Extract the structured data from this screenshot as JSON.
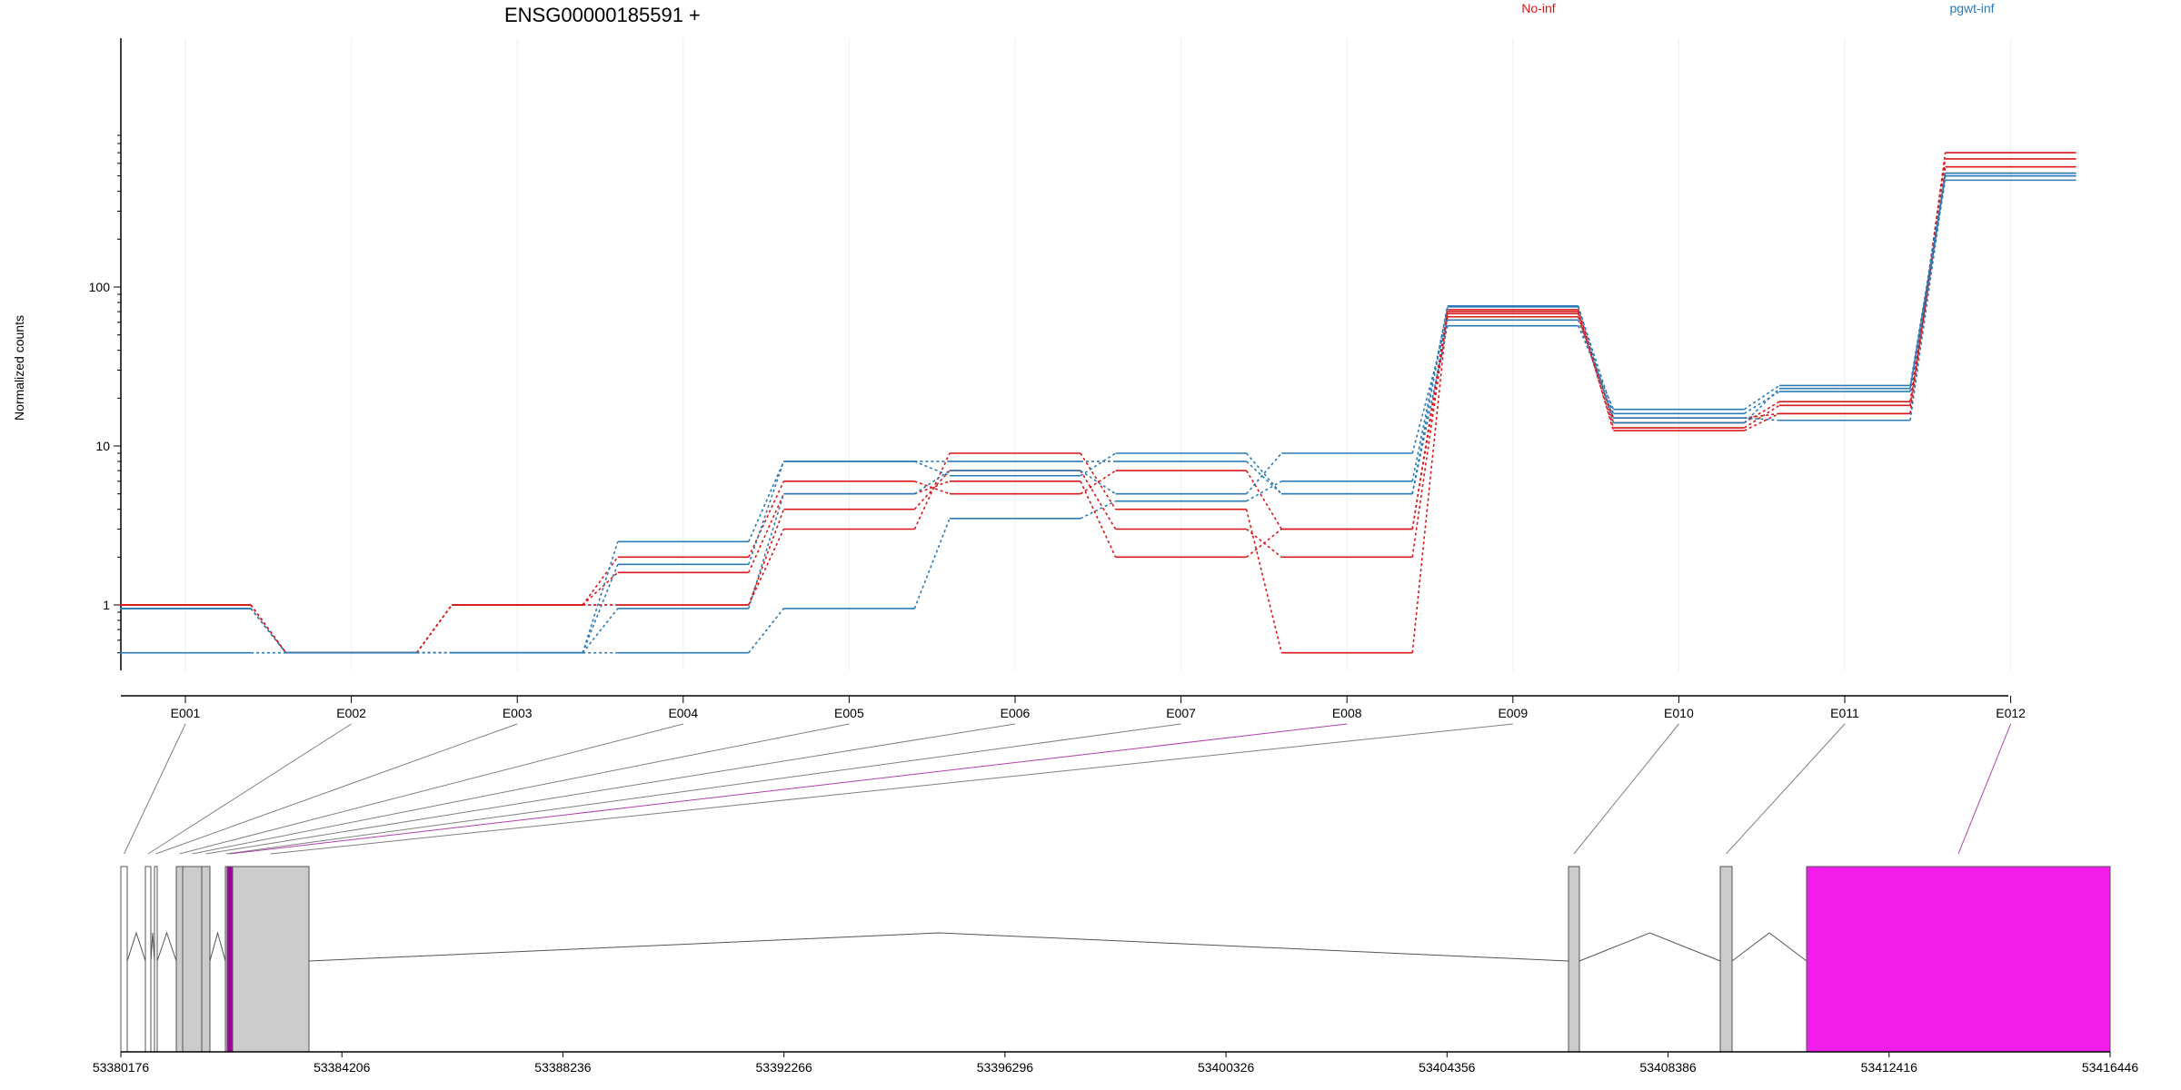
{
  "chart_data": {
    "type": "line",
    "title": "ENSG00000185591 +",
    "ylabel": "Normalized counts",
    "xlabel": "",
    "y_scale": "log",
    "y_ticks": [
      {
        "value": 1,
        "label": "1"
      },
      {
        "value": 10,
        "label": "10"
      },
      {
        "value": 100,
        "label": "100"
      }
    ],
    "ylim": [
      0.5,
      1000
    ],
    "grid": "vertical, light grey",
    "legend_position": "top",
    "legend": [
      {
        "name": "No-inf",
        "color": "#d7191c"
      },
      {
        "name": "pgwt-inf",
        "color": "#2c7bb6"
      }
    ],
    "categories": [
      "E001",
      "E002",
      "E003",
      "E004",
      "E005",
      "E006",
      "E007",
      "E008",
      "E009",
      "E010",
      "E011",
      "E012"
    ],
    "series": [
      {
        "group": "No-inf",
        "values": [
          1.0,
          0.5,
          1.0,
          1.0,
          3.0,
          9.0,
          4.0,
          0.5,
          70,
          12.5,
          16,
          570
        ]
      },
      {
        "group": "No-inf",
        "values": [
          1.0,
          0.5,
          1.0,
          1.0,
          4.0,
          7.0,
          3.0,
          2.0,
          68,
          13.0,
          18,
          520
        ]
      },
      {
        "group": "No-inf",
        "values": [
          1.0,
          0.5,
          1.0,
          1.6,
          5.0,
          6.0,
          2.0,
          3.0,
          72,
          14.0,
          19,
          640
        ]
      },
      {
        "group": "No-inf",
        "values": [
          1.0,
          0.5,
          1.0,
          2.0,
          6.0,
          5.0,
          7.0,
          3.0,
          65,
          15.0,
          16,
          700
        ]
      },
      {
        "group": "pgwt-inf",
        "values": [
          0.95,
          0.5,
          0.5,
          0.5,
          0.95,
          3.5,
          4.5,
          6.0,
          75,
          16.0,
          22,
          470
        ]
      },
      {
        "group": "pgwt-inf",
        "values": [
          0.95,
          0.5,
          0.5,
          0.95,
          5.0,
          7.0,
          5.0,
          9.0,
          62,
          15.0,
          14.5,
          500
        ]
      },
      {
        "group": "pgwt-inf",
        "values": [
          0.95,
          0.5,
          0.5,
          1.8,
          8.0,
          6.5,
          9.0,
          5.0,
          57,
          17.0,
          24,
          520
        ]
      },
      {
        "group": "pgwt-inf",
        "values": [
          0.5,
          0.5,
          0.5,
          2.5,
          8.0,
          8.0,
          8.0,
          5.0,
          76,
          14.0,
          23,
          500
        ]
      }
    ],
    "gene_model": {
      "coordinate_ticks": [
        "53380176",
        "53384206",
        "53388236",
        "53392266",
        "53396296",
        "53400326",
        "53404356",
        "53408386",
        "53412416",
        "53416446"
      ],
      "exon_regions": [
        {
          "exon": "E001",
          "fill": "#ffffff"
        },
        {
          "exon": "E002",
          "fill": "#ffffff"
        },
        {
          "exon": "E003",
          "fill": "#ffffff"
        },
        {
          "exon": "E004",
          "fill": "#cccccc"
        },
        {
          "exon": "E005",
          "fill": "#cccccc"
        },
        {
          "exon": "E006",
          "fill": "#cccccc"
        },
        {
          "exon": "E007",
          "fill": "#cccccc"
        },
        {
          "exon": "E008",
          "fill": "#a000a0"
        },
        {
          "exon": "E009",
          "fill": "#cccccc"
        },
        {
          "exon": "E010",
          "fill": "#cccccc"
        },
        {
          "exon": "E011",
          "fill": "#cccccc"
        },
        {
          "exon": "E012",
          "fill": "#f01ee8"
        }
      ],
      "connector_colors": {
        "default": "#808080",
        "highlight": "#b040b0"
      },
      "highlighted_exons": [
        "E008",
        "E012"
      ]
    }
  }
}
